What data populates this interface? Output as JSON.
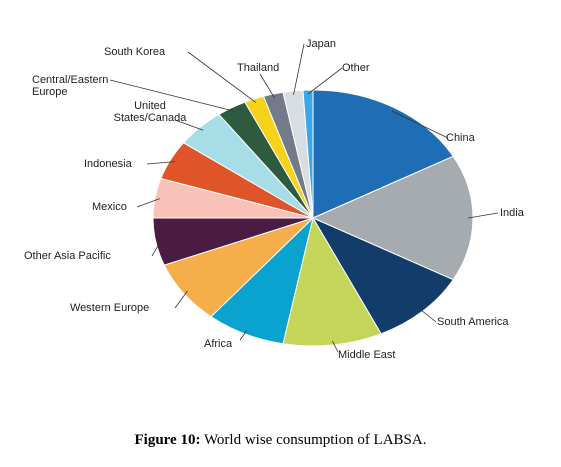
{
  "chart_data": {
    "type": "pie",
    "categories": [
      "China",
      "India",
      "South America",
      "Middle East",
      "Africa",
      "Western Europe",
      "Other Asia Pacific",
      "Mexico",
      "Indonesia",
      "United States/Canada",
      "Central/Eastern Europe",
      "South Korea",
      "Thailand",
      "Japan",
      "Other"
    ],
    "values": [
      17,
      16,
      10,
      10,
      8,
      8,
      6,
      5,
      5,
      5,
      3,
      2,
      2,
      2,
      1
    ],
    "colors": [
      "#1f6db5",
      "#a6abb0",
      "#123d6b",
      "#c5d55a",
      "#0aa3cf",
      "#f6ae4a",
      "#4a1c44",
      "#f9c2b8",
      "#e0542a",
      "#a6dde6",
      "#2e5a3e",
      "#f7d21a",
      "#737b8a",
      "#d8dde1",
      "#3aa7e8"
    ]
  },
  "figure": {
    "label": "Figure 10:",
    "text": "World wise consumption of LABSA."
  }
}
